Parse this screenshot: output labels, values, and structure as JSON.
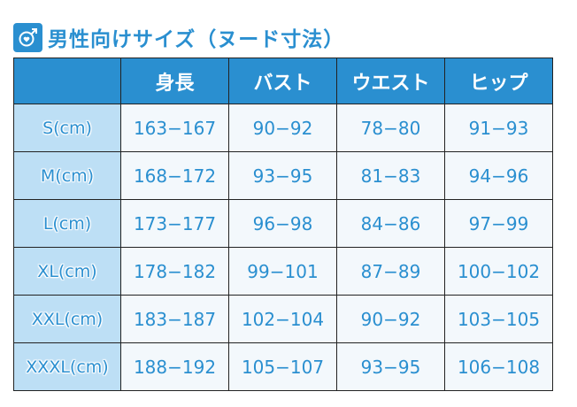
{
  "title": "男性向けサイズ（ヌード寸法）",
  "icon": "male-heart-icon",
  "colors": {
    "accent": "#2a8fd0",
    "label_bg": "#bddff5",
    "cell_bg": "#f3f8fc"
  },
  "headers": [
    "",
    "身長",
    "バスト",
    "ウエスト",
    "ヒップ"
  ],
  "rows": [
    [
      "S(cm)",
      "163−167",
      "90−92",
      "78−80",
      "91−93"
    ],
    [
      "M(cm)",
      "168−172",
      "93−95",
      "81−83",
      "94−96"
    ],
    [
      "L(cm)",
      "173−177",
      "96−98",
      "84−86",
      "97−99"
    ],
    [
      "XL(cm)",
      "178−182",
      "99−101",
      "87−89",
      "100−102"
    ],
    [
      "XXL(cm)",
      "183−187",
      "102−104",
      "90−92",
      "103−105"
    ],
    [
      "XXXL(cm)",
      "188−192",
      "105−107",
      "93−95",
      "106−108"
    ]
  ]
}
